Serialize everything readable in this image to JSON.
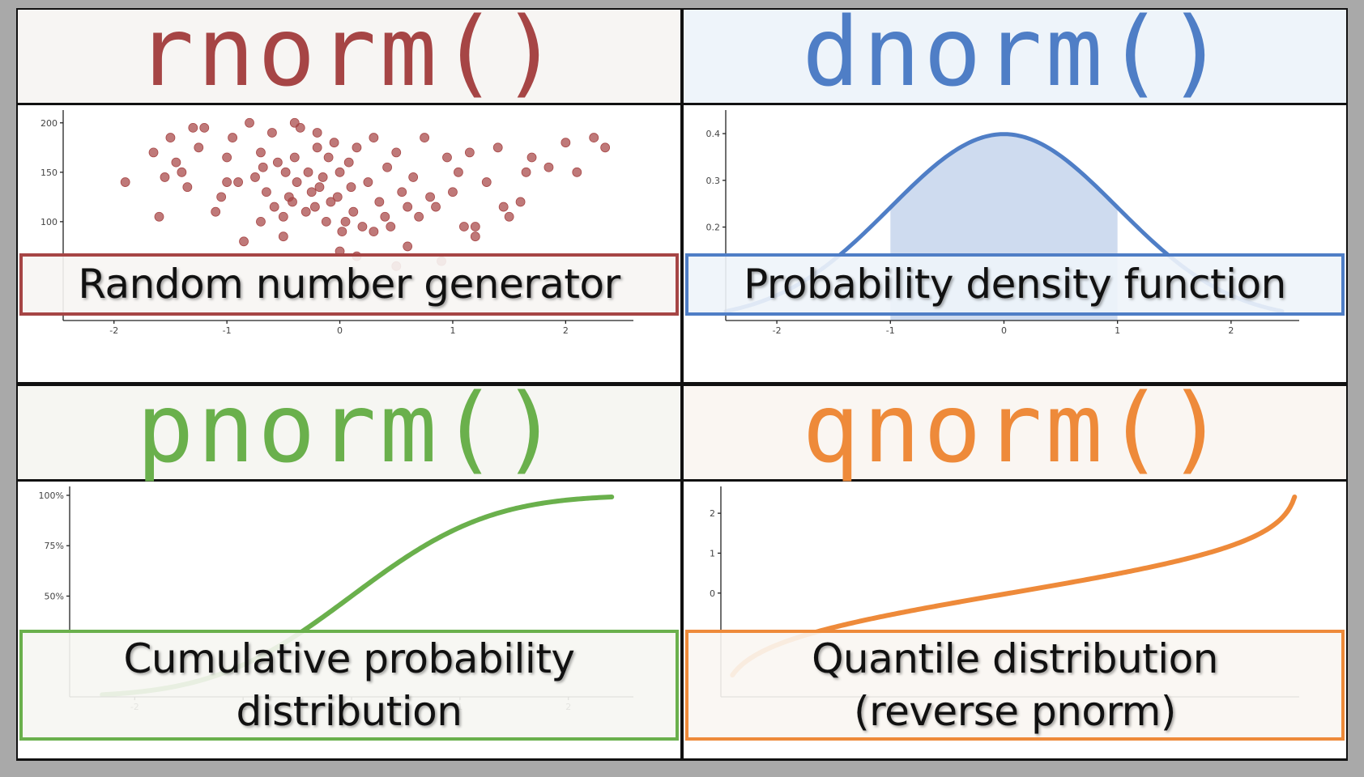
{
  "panels": [
    {
      "function": "rnorm()",
      "color": "#a64545",
      "header_bg": "#f7f5f3",
      "description": [
        "Random number generator"
      ],
      "chart_data": {
        "type": "scatter",
        "title": "",
        "xlabel": "",
        "ylabel": "",
        "xlim": [
          -2.45,
          2.6
        ],
        "ylim": [
          0,
          208
        ],
        "x_ticks": [
          "-2",
          "-1",
          "0",
          "1",
          "2"
        ],
        "y_ticks": [
          "100",
          "150",
          "200"
        ],
        "series": [
          {
            "x": [
              -1.9,
              -1.65,
              -1.55,
              -1.5,
              -1.45,
              -1.4,
              -1.35,
              -1.25,
              -1.2,
              -1.05,
              -1.0,
              -0.95,
              -0.9,
              -0.8,
              -0.75,
              -0.7,
              -0.68,
              -0.65,
              -0.6,
              -0.58,
              -0.55,
              -0.5,
              -0.48,
              -0.45,
              -0.42,
              -0.4,
              -0.38,
              -0.35,
              -0.3,
              -0.28,
              -0.25,
              -0.22,
              -0.2,
              -0.18,
              -0.15,
              -0.12,
              -0.1,
              -0.08,
              -0.05,
              -0.02,
              0.0,
              0.02,
              0.05,
              0.08,
              0.1,
              0.12,
              0.15,
              0.2,
              0.25,
              0.3,
              0.35,
              0.4,
              0.42,
              0.45,
              0.5,
              0.55,
              0.6,
              0.65,
              0.7,
              0.75,
              0.8,
              0.85,
              0.95,
              1.0,
              1.05,
              1.1,
              1.15,
              1.2,
              1.3,
              1.4,
              1.5,
              1.6,
              1.7,
              1.85,
              2.0,
              2.1,
              2.25,
              2.35,
              -1.6,
              -1.3,
              -1.0,
              -0.7,
              -0.4,
              -0.2,
              0.3,
              0.6,
              0.9,
              1.2,
              1.45,
              1.65,
              -1.1,
              -0.5,
              0.0,
              0.5,
              -0.85,
              0.15
            ],
            "y": [
              140,
              170,
              145,
              185,
              160,
              150,
              135,
              175,
              195,
              125,
              165,
              185,
              140,
              200,
              145,
              170,
              155,
              130,
              190,
              115,
              160,
              105,
              150,
              125,
              120,
              165,
              140,
              195,
              110,
              150,
              130,
              115,
              175,
              135,
              145,
              100,
              165,
              120,
              180,
              125,
              150,
              90,
              100,
              160,
              135,
              110,
              175,
              95,
              140,
              185,
              120,
              105,
              155,
              95,
              170,
              130,
              115,
              145,
              105,
              185,
              125,
              115,
              165,
              130,
              150,
              95,
              170,
              85,
              140,
              175,
              105,
              120,
              165,
              155,
              180,
              150,
              185,
              175,
              105,
              195,
              140,
              100,
              200,
              190,
              90,
              75,
              60,
              95,
              115,
              150,
              110,
              85,
              70,
              55,
              80,
              65
            ]
          }
        ]
      }
    },
    {
      "function": "dnorm()",
      "color": "#4f7ec6",
      "header_bg": "#eef4fa",
      "description": [
        "Probability density function"
      ],
      "chart_data": {
        "type": "area",
        "title": "",
        "xlabel": "",
        "ylabel": "",
        "xlim": [
          -2.45,
          2.6
        ],
        "ylim": [
          0,
          0.44
        ],
        "x_ticks": [
          "-2",
          "-1",
          "0",
          "1",
          "2"
        ],
        "y_ticks": [
          "0.2",
          "0.3",
          "0.4"
        ],
        "curve": {
          "x_start": -2.45,
          "x_end": 2.45,
          "function": "normal density"
        },
        "shaded_range": [
          -1,
          1
        ]
      }
    },
    {
      "function": "pnorm()",
      "color": "#6ab04c",
      "header_bg": "#f6f6f2",
      "description": [
        "Cumulative probability",
        "distribution"
      ],
      "chart_data": {
        "type": "line",
        "title": "",
        "xlabel": "",
        "ylabel": "",
        "xlim": [
          -2.6,
          2.6
        ],
        "ylim": [
          0,
          1.02
        ],
        "x_ticks": [
          "-2",
          "-1",
          "0",
          "1",
          "2"
        ],
        "y_ticks": [
          "50%",
          "75%",
          "100%"
        ],
        "curve": {
          "x_start": -2.3,
          "x_end": 2.4,
          "function": "normal cumulative"
        }
      }
    },
    {
      "function": "qnorm()",
      "color": "#ee8a3a",
      "header_bg": "#faf6f2",
      "description": [
        "Quantile distribution",
        "(reverse pnorm)"
      ],
      "chart_data": {
        "type": "line",
        "title": "",
        "xlabel": "",
        "ylabel": "",
        "xlim": [
          0,
          1.0
        ],
        "ylim": [
          -2.6,
          2.55
        ],
        "y_ticks": [
          "0",
          "1",
          "2"
        ],
        "curve": {
          "p_start": 0.02,
          "p_end": 0.993,
          "function": "normal quantile"
        }
      }
    }
  ]
}
